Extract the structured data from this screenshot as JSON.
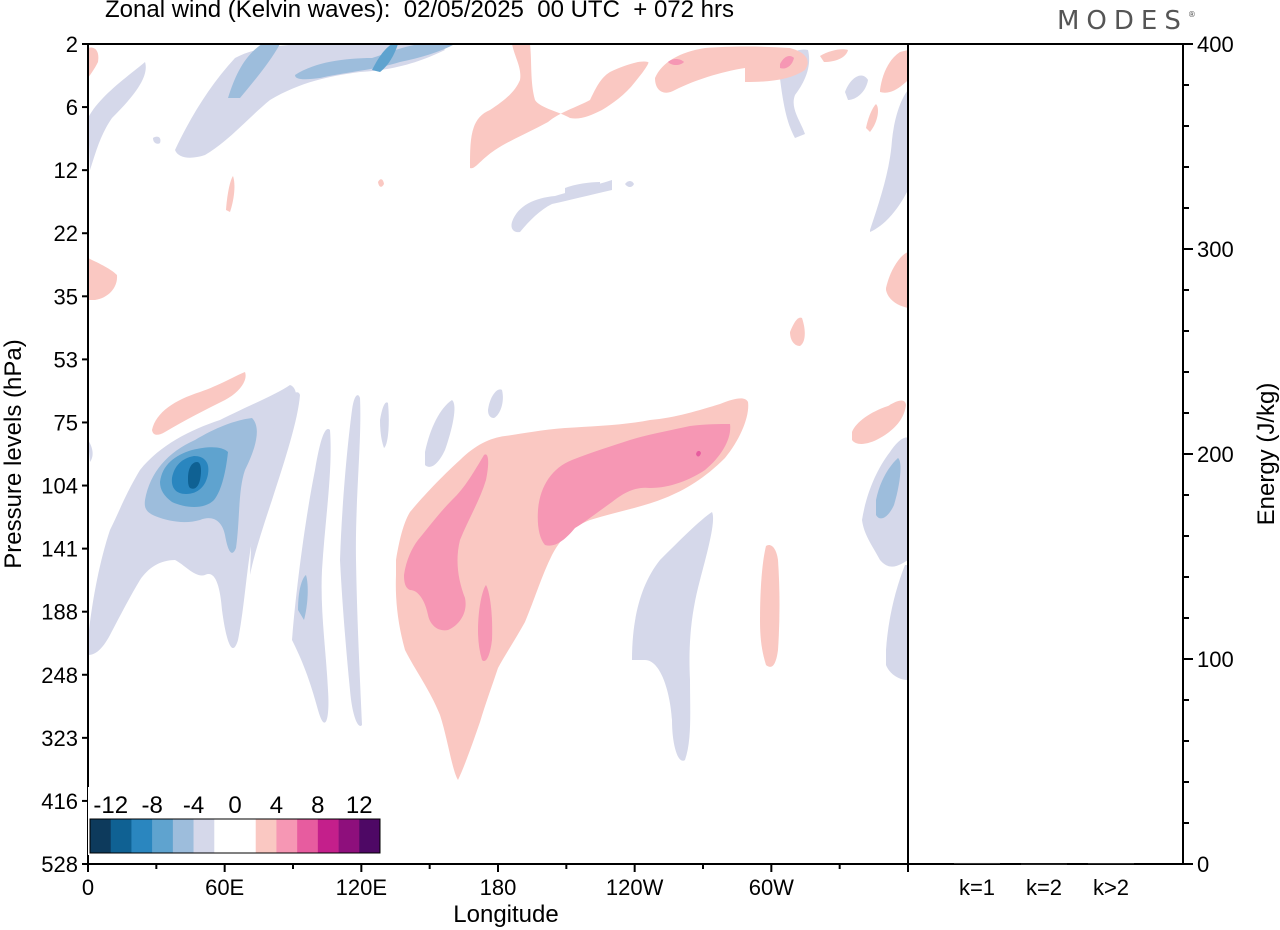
{
  "header": {
    "title": "Zonal wind (Kelvin waves):  02/05/2025  00 UTC  + 072 hrs",
    "brand": "MODES",
    "brand_mark": "®"
  },
  "chart_data": [
    {
      "type": "heatmap",
      "title": "Zonal wind (Kelvin waves):  02/05/2025  00 UTC  + 072 hrs",
      "xlabel": "Longitude",
      "ylabel": "Pressure levels (hPa)",
      "x_ticks": [
        "0",
        "60E",
        "120E",
        "180",
        "120W",
        "60W"
      ],
      "y_ticks": [
        "2",
        "6",
        "12",
        "22",
        "35",
        "53",
        "75",
        "104",
        "141",
        "188",
        "248",
        "323",
        "416",
        "528"
      ],
      "colorbar": {
        "labels": [
          "-12",
          "-8",
          "-4",
          "0",
          "4",
          "8",
          "12"
        ],
        "colors": [
          "#0d3a5c",
          "#0f6193",
          "#2a86bf",
          "#5fa3cf",
          "#9dbddc",
          "#d5d8ea",
          "#ffffff",
          "#ffffff",
          "#fac8c2",
          "#f697b4",
          "#e75c9f",
          "#c41f8b",
          "#8e0f7c",
          "#4e0865"
        ]
      },
      "features": [
        {
          "name": "Main positive anomaly",
          "lon_range": [
            120,
            250
          ],
          "p_range": [
            75,
            380
          ],
          "max": 8,
          "sign": "positive"
        },
        {
          "name": "Strong negative anomaly",
          "lon_range": [
            20,
            80
          ],
          "p_range": [
            75,
            190
          ],
          "min": -10,
          "sign": "negative"
        },
        {
          "name": "Upper-level positive streaks",
          "lon_range": [
            170,
            340
          ],
          "p_range": [
            2,
            12
          ],
          "max": 6,
          "sign": "positive"
        },
        {
          "name": "Upper-level negative streaks",
          "lon_range": [
            0,
            130
          ],
          "p_range": [
            2,
            12
          ],
          "min": -6,
          "sign": "negative"
        },
        {
          "name": "Upper-tropospheric positive band",
          "lon_range": [
            30,
            70
          ],
          "p_range": [
            60,
            80
          ],
          "max": 4,
          "sign": "positive"
        },
        {
          "name": "Negative anomaly near dateline west",
          "lon_range": [
            235,
            265
          ],
          "p_range": [
            120,
            320
          ],
          "min": -4,
          "sign": "negative"
        }
      ]
    },
    {
      "type": "bar",
      "categories": [
        "k=1",
        "k=2",
        "k>2"
      ],
      "values": [
        0.5,
        0.2,
        0.4
      ],
      "ylabel": "Energy (J/kg)",
      "ylim": [
        0,
        400
      ],
      "y_ticks": [
        "0",
        "100",
        "200",
        "300",
        "400"
      ]
    }
  ]
}
